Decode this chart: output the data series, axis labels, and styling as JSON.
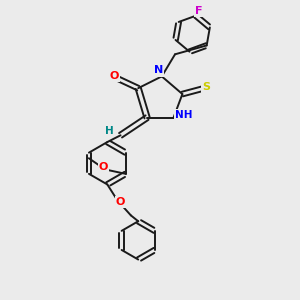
{
  "bg_color": "#ebebeb",
  "bond_color": "#1a1a1a",
  "atom_colors": {
    "O": "#ff0000",
    "N": "#0000ff",
    "S": "#cccc00",
    "F": "#cc00cc",
    "H": "#008888",
    "C": "#1a1a1a"
  },
  "figsize": [
    3.0,
    3.0
  ],
  "dpi": 100
}
